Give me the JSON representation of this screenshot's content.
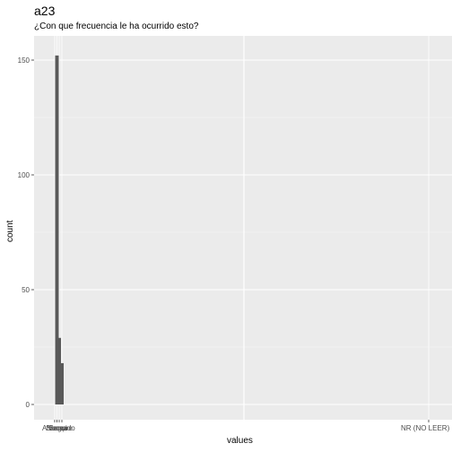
{
  "chart_data": {
    "type": "bar",
    "title": "a23",
    "subtitle": "¿Con que frecuencia le ha ocurrido esto?",
    "xlabel": "values",
    "ylabel": "count",
    "categories": [
      "A veces",
      "Nunca",
      "Siempre",
      "Seguido",
      "NR (NO LEER)"
    ],
    "values": [
      0,
      152,
      29,
      18,
      0
    ],
    "y_ticks": [
      0,
      50,
      100,
      150
    ],
    "ylim": [
      -7.6,
      160
    ],
    "grid": true,
    "legend": "none"
  }
}
